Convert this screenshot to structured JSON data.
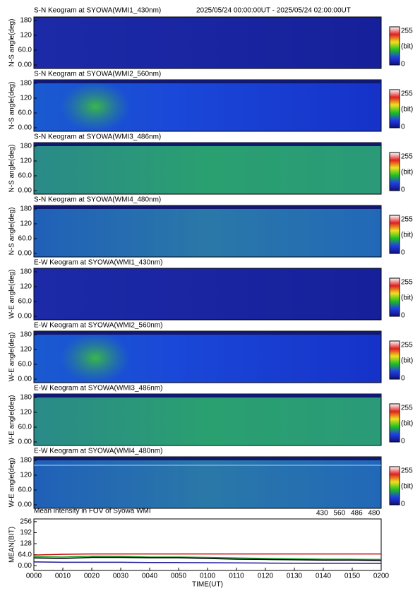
{
  "header": {
    "time_range": "2025/05/24 00:00:00UT - 2025/05/24 02:00:00UT"
  },
  "panels": [
    {
      "title": "S-N Keogram at SYOWA(WMI1_430nm)",
      "ylabel": "N-S angle(deg)",
      "yticks": [
        "180",
        "120",
        "60.0",
        "0.00"
      ],
      "colorbar": [
        "255",
        "(bit)",
        "0"
      ]
    },
    {
      "title": "S-N Keogram at SYOWA(WMI2_560nm)",
      "ylabel": "N-S angle(deg)",
      "yticks": [
        "180",
        "120",
        "60.0",
        "0.00"
      ],
      "colorbar": [
        "255",
        "(bit)",
        "0"
      ]
    },
    {
      "title": "S-N Keogram at SYOWA(WMI3_486nm)",
      "ylabel": "N-S angle(deg)",
      "yticks": [
        "180",
        "120",
        "60.0",
        "0.00"
      ],
      "colorbar": [
        "255",
        "(bit)",
        "0"
      ]
    },
    {
      "title": "S-N Keogram at SYOWA(WMI4_480nm)",
      "ylabel": "N-S angle(deg)",
      "yticks": [
        "180",
        "120",
        "60.0",
        "0.00"
      ],
      "colorbar": [
        "255",
        "(bit)",
        "0"
      ]
    },
    {
      "title": "E-W Keogram at SYOWA(WMI1_430nm)",
      "ylabel": "W-E angle(deg)",
      "yticks": [
        "180",
        "120",
        "60.0",
        "0.00"
      ],
      "colorbar": [
        "255",
        "(bit)",
        "0"
      ]
    },
    {
      "title": "E-W Keogram at SYOWA(WMI2_560nm)",
      "ylabel": "W-E angle(deg)",
      "yticks": [
        "180",
        "120",
        "60.0",
        "0.00"
      ],
      "colorbar": [
        "255",
        "(bit)",
        "0"
      ]
    },
    {
      "title": "E-W Keogram at SYOWA(WMI3_486nm)",
      "ylabel": "W-E angle(deg)",
      "yticks": [
        "180",
        "120",
        "60.0",
        "0.00"
      ],
      "colorbar": [
        "255",
        "(bit)",
        "0"
      ]
    },
    {
      "title": "E-W Keogram at SYOWA(WMI4_480nm)",
      "ylabel": "W-E angle(deg)",
      "yticks": [
        "180",
        "120",
        "60.0",
        "0.00"
      ],
      "colorbar": [
        "255",
        "(bit)",
        "0"
      ]
    }
  ],
  "chart_data": {
    "type": "line",
    "title": "Mean intensity in FOV of Syowa WMI",
    "xlabel": "TIME(UT)",
    "ylabel": "MEAN(BIT)",
    "x": [
      0,
      10,
      20,
      30,
      40,
      50,
      60,
      70,
      80,
      90,
      100,
      110,
      120
    ],
    "xlim": [
      0,
      120
    ],
    "xticks": [
      {
        "value": 0,
        "label": "0000"
      },
      {
        "value": 10,
        "label": "0010"
      },
      {
        "value": 20,
        "label": "0020"
      },
      {
        "value": 30,
        "label": "0030"
      },
      {
        "value": 40,
        "label": "0040"
      },
      {
        "value": 50,
        "label": "0050"
      },
      {
        "value": 60,
        "label": "0100"
      },
      {
        "value": 70,
        "label": "0110"
      },
      {
        "value": 80,
        "label": "0120"
      },
      {
        "value": 90,
        "label": "0130"
      },
      {
        "value": 100,
        "label": "0140"
      },
      {
        "value": 110,
        "label": "0150"
      },
      {
        "value": 120,
        "label": "0200"
      }
    ],
    "ylim": [
      -28,
      272
    ],
    "yticks": [
      {
        "value": 0,
        "label": "0.00"
      },
      {
        "value": 64,
        "label": "64.0"
      },
      128,
      192,
      256
    ],
    "series": [
      {
        "name": "430",
        "color": "#1a1a9a",
        "values": [
          22,
          20,
          20,
          20,
          18,
          18,
          17,
          16,
          15,
          14,
          14,
          14,
          13
        ]
      },
      {
        "name": "560",
        "color": "#10a020",
        "values": [
          52,
          50,
          55,
          54,
          50,
          50,
          48,
          45,
          42,
          40,
          38,
          37,
          36
        ]
      },
      {
        "name": "486",
        "color": "#c81010",
        "values": [
          62,
          66,
          68,
          68,
          68,
          68,
          68,
          68,
          68,
          68,
          68,
          68,
          68
        ]
      },
      {
        "name": "480",
        "color": "#000000",
        "values": [
          45,
          42,
          48,
          48,
          46,
          46,
          42,
          38,
          36,
          34,
          32,
          32,
          30
        ]
      }
    ]
  }
}
